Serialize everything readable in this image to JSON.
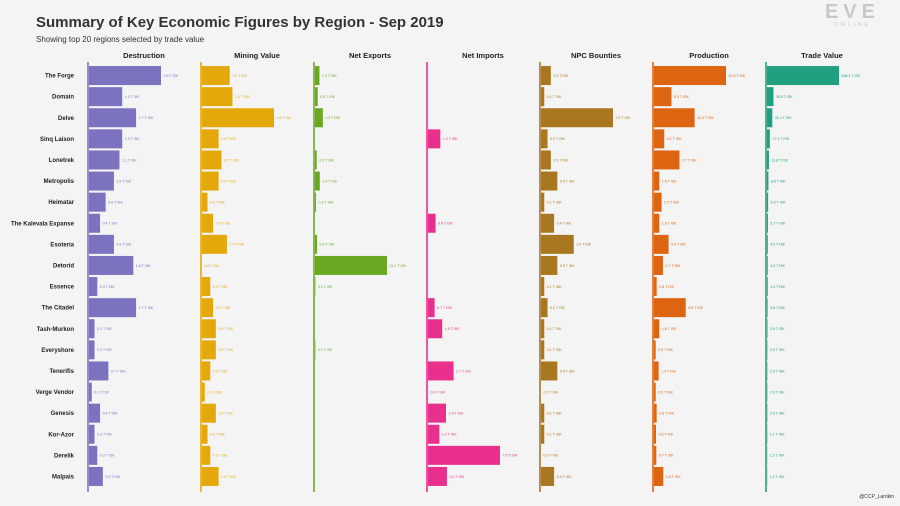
{
  "header": {
    "title": "Summary of Key Economic Figures by Region - Sep 2019",
    "subtitle": "Showing top 20 regions selected by trade value",
    "logo_text": "EVE",
    "logo_sub": "ONLINE",
    "credit": "@CCP_Larrikin"
  },
  "chart_data": {
    "type": "bar",
    "orientation": "horizontal",
    "title": "Summary of Key Economic Figures by Region - Sep 2019",
    "unit": "T ISK",
    "categories": [
      "The Forge",
      "Domain",
      "Delve",
      "Sinq Laison",
      "Lonetrek",
      "Metropolis",
      "Heimatar",
      "The Kalevala Expanse",
      "Esoteria",
      "Detorid",
      "Essence",
      "The Citadel",
      "Tash-Murkon",
      "Everyshore",
      "Tenerifis",
      "Verge Vendor",
      "Genesis",
      "Kor-Azor",
      "Derelik",
      "Malpais"
    ],
    "series": [
      {
        "name": "Destruction",
        "color": "#7b73bf",
        "max": 2.6,
        "values": [
          2.6,
          1.2,
          1.7,
          1.2,
          1.1,
          0.9,
          0.6,
          0.4,
          0.9,
          1.6,
          0.3,
          1.7,
          0.2,
          0.2,
          0.7,
          0.1,
          0.4,
          0.2,
          0.3,
          0.5
        ],
        "labels": [
          "2.6 T ISK",
          "1.2 T ISK",
          "1.7 T ISK",
          "1.2 T ISK",
          "1.1 T ISK",
          "0.9 T ISK",
          "0.6 T ISK",
          "0.4 T ISK",
          "0.9 T ISK",
          "1.6 T ISK",
          "0.3 T ISK",
          "1.7 T ISK",
          "0.2 T ISK",
          "0.2 T ISK",
          "0.7 T ISK",
          "0.1 T ISK",
          "0.4 T ISK",
          "0.2 T ISK",
          "0.3 T ISK",
          "0.5 T ISK"
        ]
      },
      {
        "name": "Mining Value",
        "color": "#e5a80a",
        "max": 2.6,
        "values": [
          1.0,
          1.1,
          2.6,
          0.6,
          0.7,
          0.6,
          0.2,
          0.4,
          0.9,
          0.0,
          0.3,
          0.4,
          0.5,
          0.5,
          0.3,
          0.1,
          0.5,
          0.2,
          0.3,
          0.6
        ],
        "labels": [
          "1.0 T ISK",
          "1.1 T ISK",
          "2.6 T ISK",
          "0.6 T ISK",
          "0.7 T ISK",
          "0.6 T ISK",
          "0.2 T ISK",
          "0.4 T ISK",
          "0.9 T ISK",
          "0.0 T ISK",
          "0.3 T ISK",
          "0.4 T ISK",
          "0.5 T ISK",
          "0.5 T ISK",
          "0.3 T ISK",
          "0.1 T ISK",
          "0.5 T ISK",
          "0.2 T ISK",
          "0.3 T ISK",
          "0.6 T ISK"
        ]
      },
      {
        "name": "Net Exports",
        "color": "#6aa822",
        "max": 21.1,
        "values": [
          1.3,
          0.8,
          2.3,
          0.0,
          0.5,
          1.4,
          0.3,
          0.0,
          0.6,
          21.1,
          0.1,
          0.0,
          0.0,
          0.1,
          0.0,
          0.0,
          0.0,
          0.0,
          0.0,
          0.0
        ],
        "labels": [
          "1.3 T ISK",
          "0.8 T ISK",
          "2.3 T ISK",
          "",
          "0.5 T ISK",
          "1.4 T ISK",
          "0.3 T ISK",
          "",
          "0.6 T ISK",
          "21.1 T ISK",
          "0.1 T ISK",
          "",
          "",
          "0.1 T ISK",
          "",
          "",
          "",
          "",
          "",
          ""
        ]
      },
      {
        "name": "Net Imports",
        "color": "#e8308c",
        "max": 7.6,
        "values": [
          0.0,
          0.0,
          0.0,
          1.3,
          0.0,
          0.0,
          0.0,
          0.8,
          0.0,
          0.0,
          0.0,
          0.7,
          1.5,
          0.0,
          2.7,
          0.0,
          1.9,
          1.2,
          7.6,
          2.0
        ],
        "labels": [
          "",
          "",
          "",
          "1.3 T ISK",
          "",
          "",
          "",
          "0.8 T ISK",
          "",
          "",
          "",
          "0.7 T ISK",
          "1.5 T ISK",
          "",
          "2.7 T ISK",
          "0.0 T ISK",
          "1.9 T ISK",
          "1.2 T ISK",
          "7.6 T ISK",
          "2.0 T ISK"
        ]
      },
      {
        "name": "NPC Bounties",
        "color": "#a87720",
        "max": 2.2,
        "values": [
          0.3,
          0.1,
          2.2,
          0.2,
          0.3,
          0.5,
          0.1,
          0.4,
          1.0,
          0.5,
          0.1,
          0.2,
          0.1,
          0.1,
          0.5,
          0.0,
          0.1,
          0.1,
          0.0,
          0.4
        ],
        "labels": [
          "0.3 T ISK",
          "0.1 T ISK",
          "2.2 T ISK",
          "0.2 T ISK",
          "0.3 T ISK",
          "0.5 T ISK",
          "0.1 T ISK",
          "0.4 T ISK",
          "1.0 T ISK",
          "0.5 T ISK",
          "0.1 T ISK",
          "0.2 T ISK",
          "0.1 T ISK",
          "0.1 T ISK",
          "0.5 T ISK",
          "0.0 T ISK",
          "0.1 T ISK",
          "0.1 T ISK",
          "0.0 T ISK",
          "0.4 T ISK"
        ]
      },
      {
        "name": "Production",
        "color": "#dd6410",
        "max": 21.8,
        "values": [
          21.8,
          5.3,
          12.3,
          3.1,
          7.7,
          1.6,
          2.3,
          1.6,
          4.4,
          2.7,
          0.8,
          9.6,
          1.6,
          0.5,
          1.4,
          0.5,
          0.8,
          0.6,
          0.7,
          2.8
        ],
        "labels": [
          "21.8 T ISK",
          "5.3 T ISK",
          "12.3 T ISK",
          "3.1 T ISK",
          "7.7 T ISK",
          "1.6 T ISK",
          "2.3 T ISK",
          "1.6 T ISK",
          "4.4 T ISK",
          "2.7 T ISK",
          "0.8 T ISK",
          "9.6 T ISK",
          "1.6 T ISK",
          "0.5 T ISK",
          "1.4 T ISK",
          "0.5 T ISK",
          "0.8 T ISK",
          "0.6 T ISK",
          "0.7 T ISK",
          "2.8 T ISK"
        ]
      },
      {
        "name": "Trade Value",
        "color": "#20a07e",
        "max": 438.4,
        "values": [
          438.4,
          39.5,
          32.4,
          17.3,
          11.8,
          8.6,
          6.9,
          5.7,
          4.9,
          4.3,
          4.3,
          3.6,
          2.9,
          2.2,
          2.0,
          2.0,
          2.0,
          1.7,
          1.2,
          1.2
        ],
        "labels": [
          "438.4 T ISK",
          "39.5 T ISK",
          "32.4 T ISK",
          "17.3 T ISK",
          "11.8 T ISK",
          "8.6 T ISK",
          "6.9 T ISK",
          "5.7 T ISK",
          "4.9 T ISK",
          "4.3 T ISK",
          "4.3 T ISK",
          "3.6 T ISK",
          "2.9 T ISK",
          "2.2 T ISK",
          "2.0 T ISK",
          "2.0 T ISK",
          "2.0 T ISK",
          "1.7 T ISK",
          "1.2 T ISK",
          "1.2 T ISK"
        ]
      }
    ]
  }
}
